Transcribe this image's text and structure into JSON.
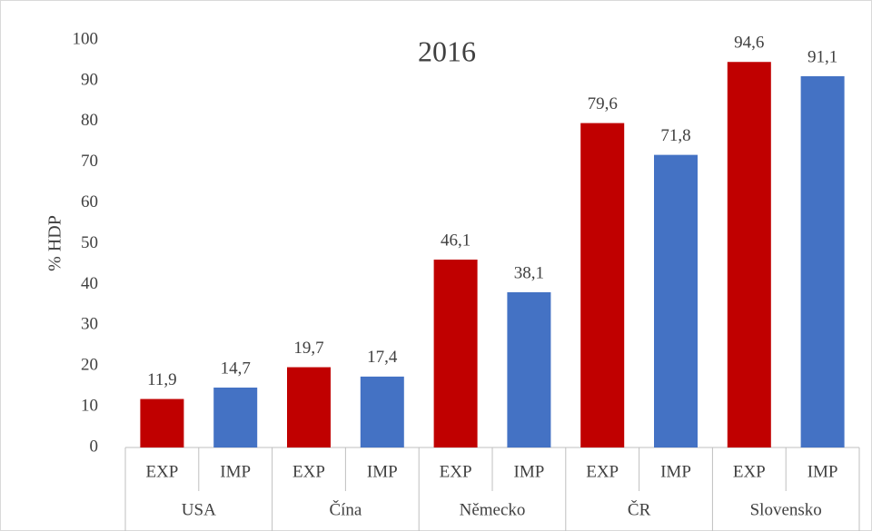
{
  "chart_data": {
    "type": "bar",
    "title": "2016",
    "ylabel": "% HDP",
    "categories": [
      "USA",
      "Čína",
      "Německo",
      "ČR",
      "Slovensko"
    ],
    "series": [
      {
        "name": "EXP",
        "color": "#c00000",
        "values": [
          11.9,
          19.7,
          46.1,
          79.6,
          94.6
        ],
        "value_labels": [
          "11,9",
          "19,7",
          "46,1",
          "79,6",
          "94,6"
        ]
      },
      {
        "name": "IMP",
        "color": "#4472c4",
        "values": [
          14.7,
          17.4,
          38.1,
          71.8,
          91.1
        ],
        "value_labels": [
          "14,7",
          "17,4",
          "38,1",
          "71,8",
          "91,1"
        ]
      }
    ],
    "ylim": [
      0,
      100
    ],
    "yticks": [
      0,
      10,
      20,
      30,
      40,
      50,
      60,
      70,
      80,
      90,
      100
    ],
    "grid": false
  }
}
